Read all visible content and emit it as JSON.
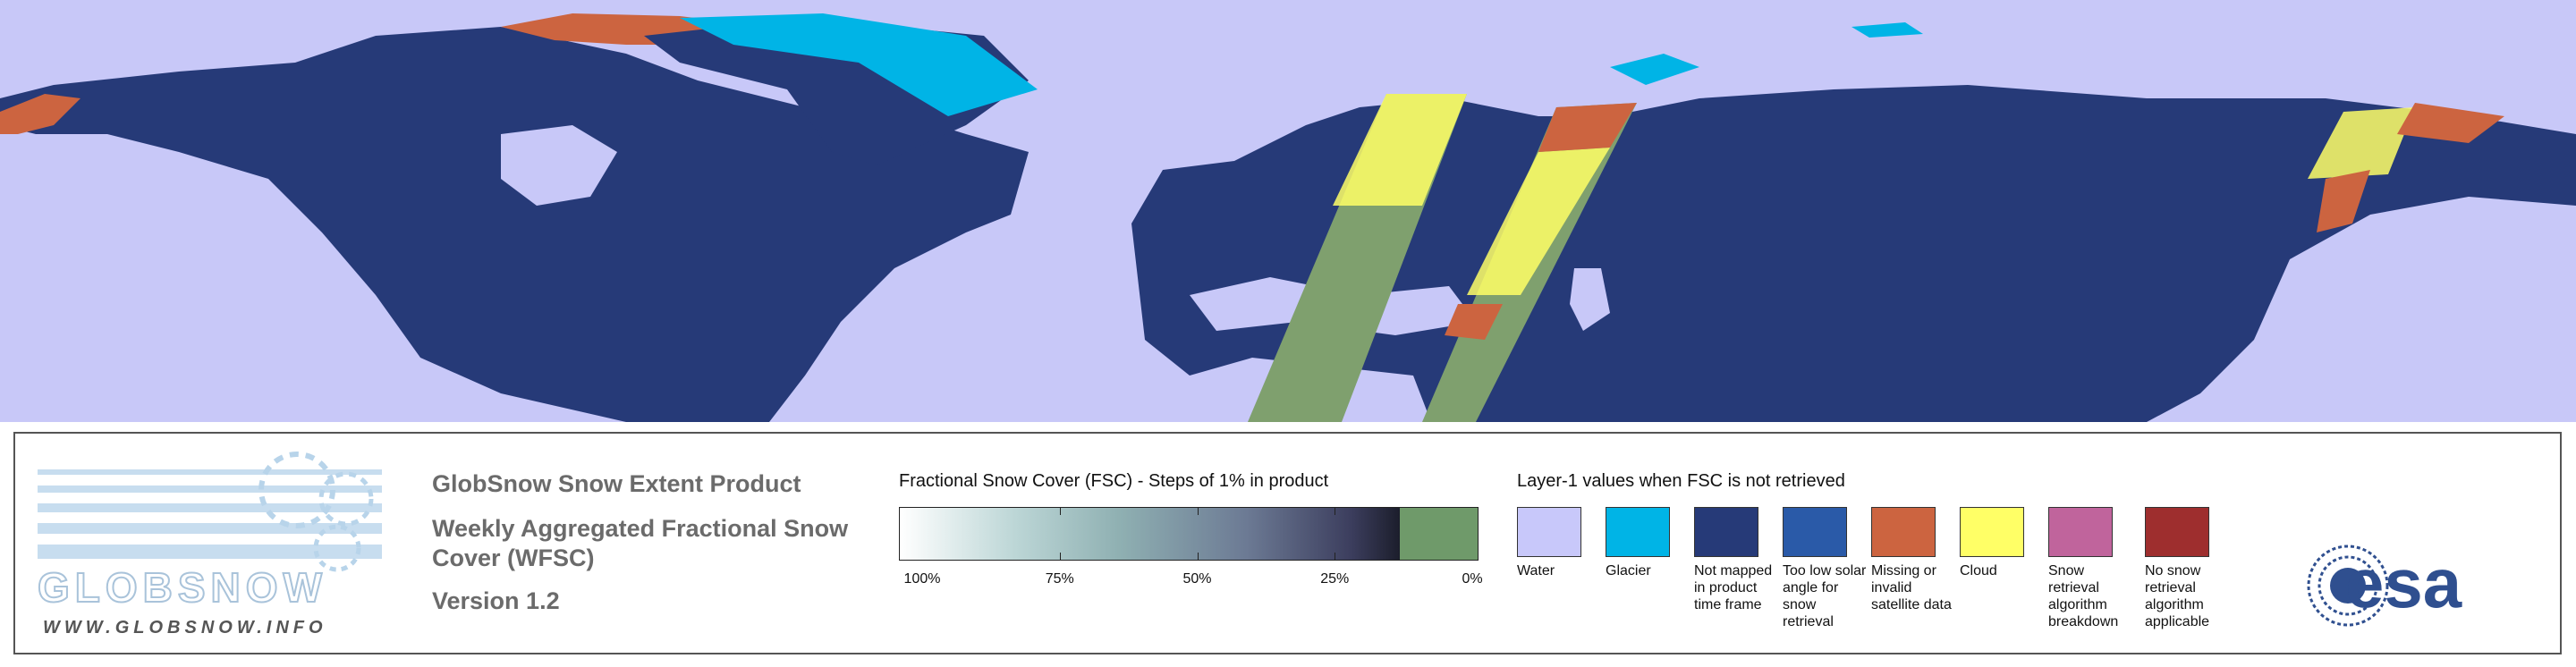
{
  "logo": {
    "wordmark": "GLOBSNOW",
    "url": "WWW.GLOBSNOW.INFO"
  },
  "product": {
    "title": "GlobSnow Snow Extent Product",
    "subtitle": "Weekly Aggregated Fractional Snow Cover (WFSC)",
    "version": "Version 1.2"
  },
  "fsc_scale": {
    "title": "Fractional Snow Cover (FSC) - Steps of 1% in product",
    "ticks": [
      "100%",
      "75%",
      "50%",
      "25%",
      "0%"
    ]
  },
  "layer1": {
    "title": "Layer-1 values when FSC is not retrieved",
    "items": [
      {
        "label": "Water",
        "color": "#c8c8fa"
      },
      {
        "label": "Glacier",
        "color": "#00b4e6"
      },
      {
        "label": "Not mapped in product time frame",
        "color": "#263a78"
      },
      {
        "label": "Too low solar angle for snow retrieval",
        "color": "#2a5aa8"
      },
      {
        "label": "Missing or invalid satellite data",
        "color": "#cc6440"
      },
      {
        "label": "Cloud",
        "color": "#ffff66"
      },
      {
        "label": "Snow retrieval algorithm breakdown",
        "color": "#c0649c"
      },
      {
        "label": "No snow retrieval algorithm applicable",
        "color": "#9e2e2e"
      }
    ]
  },
  "agency": "esa"
}
